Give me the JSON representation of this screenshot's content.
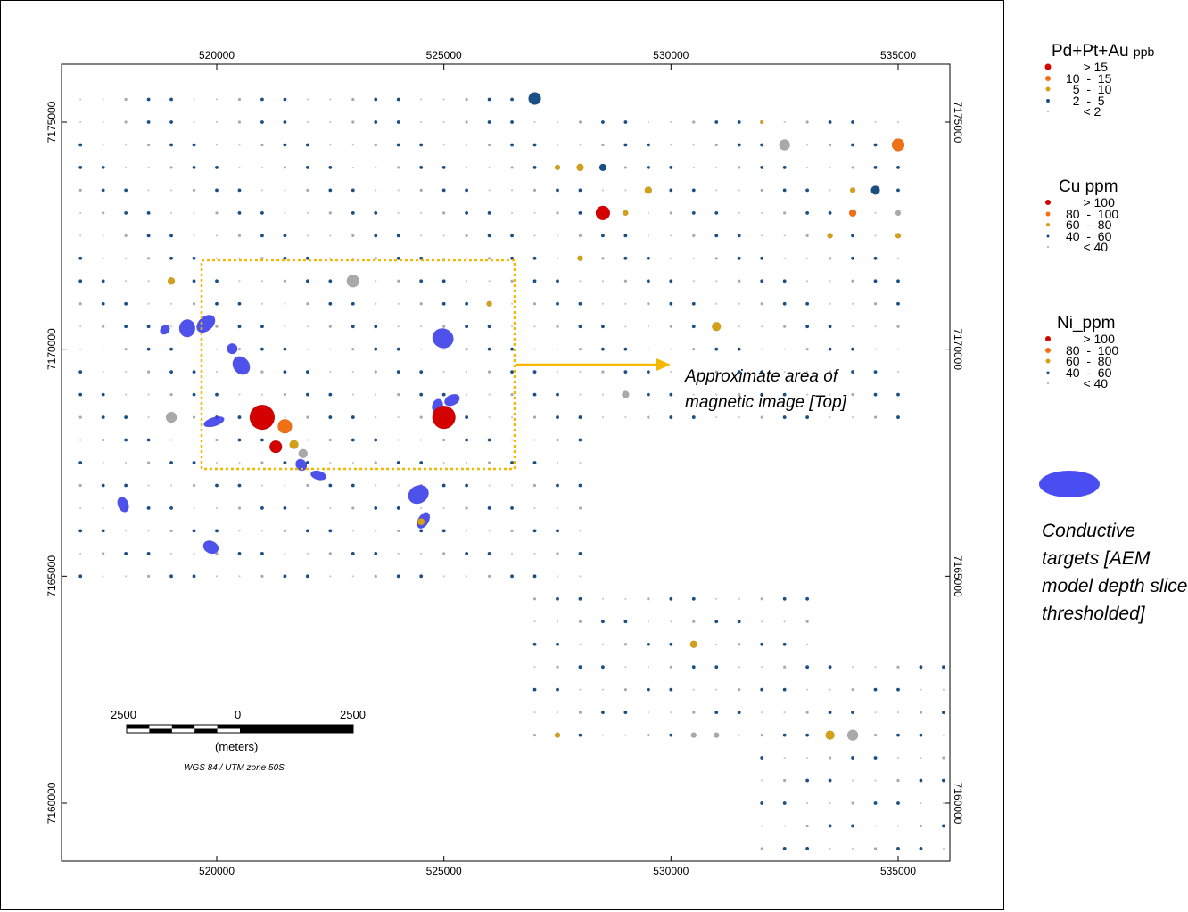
{
  "map": {
    "x_ticks": [
      "520000",
      "525000",
      "530000",
      "535000"
    ],
    "y_ticks": [
      "7175000",
      "7170000",
      "7165000",
      "7160000"
    ],
    "annotation": [
      "Approximate area of",
      "magnetic image [Top]"
    ],
    "colors": {
      "gt_high": "#d40000",
      "high": "#f07015",
      "mid": "#d4a017",
      "low": "#1a4f86",
      "lowest": "#a9a9a9",
      "conductive": "#3b3fe8",
      "box": "#f5b800"
    },
    "conductive_targets": [
      {
        "e": 518860,
        "n": 7170430
      },
      {
        "e": 519350,
        "n": 7170460
      },
      {
        "e": 519760,
        "n": 7170560
      },
      {
        "e": 520340,
        "n": 7170010
      },
      {
        "e": 520540,
        "n": 7169640
      },
      {
        "e": 520980,
        "n": 7168560
      },
      {
        "e": 521860,
        "n": 7167450
      },
      {
        "e": 522240,
        "n": 7167220
      },
      {
        "e": 524440,
        "n": 7166800
      },
      {
        "e": 524860,
        "n": 7168750
      },
      {
        "e": 525180,
        "n": 7168880
      },
      {
        "e": 524980,
        "n": 7170240
      },
      {
        "e": 517940,
        "n": 7166580
      },
      {
        "e": 519870,
        "n": 7165640
      },
      {
        "e": 519940,
        "n": 7168400
      },
      {
        "e": 524550,
        "n": 7166230
      }
    ],
    "samples": [
      {
        "e": 527000,
        "n": 7175520,
        "c": "low",
        "s": 7
      },
      {
        "e": 528500,
        "n": 7174000,
        "c": "low",
        "s": 4
      },
      {
        "e": 532500,
        "n": 7174500,
        "c": "lowest",
        "s": 6
      },
      {
        "e": 535000,
        "n": 7174500,
        "c": "high",
        "s": 7
      },
      {
        "e": 528500,
        "n": 7173000,
        "c": "gt_high",
        "s": 8
      },
      {
        "e": 528000,
        "n": 7174000,
        "c": "mid",
        "s": 4
      },
      {
        "e": 527500,
        "n": 7174000,
        "c": "mid",
        "s": 3
      },
      {
        "e": 529500,
        "n": 7173500,
        "c": "mid",
        "s": 4
      },
      {
        "e": 529000,
        "n": 7173000,
        "c": "mid",
        "s": 3
      },
      {
        "e": 534000,
        "n": 7173000,
        "c": "high",
        "s": 4
      },
      {
        "e": 534500,
        "n": 7173500,
        "c": "low",
        "s": 5
      },
      {
        "e": 534000,
        "n": 7173500,
        "c": "mid",
        "s": 3
      },
      {
        "e": 535000,
        "n": 7173000,
        "c": "lowest",
        "s": 3
      },
      {
        "e": 533500,
        "n": 7172500,
        "c": "mid",
        "s": 3
      },
      {
        "e": 535000,
        "n": 7172500,
        "c": "mid",
        "s": 3
      },
      {
        "e": 519000,
        "n": 7171500,
        "c": "mid",
        "s": 4
      },
      {
        "e": 523000,
        "n": 7171500,
        "c": "lowest",
        "s": 7
      },
      {
        "e": 526000,
        "n": 7171000,
        "c": "mid",
        "s": 3
      },
      {
        "e": 531000,
        "n": 7170500,
        "c": "mid",
        "s": 5
      },
      {
        "e": 519000,
        "n": 7168500,
        "c": "lowest",
        "s": 6
      },
      {
        "e": 521000,
        "n": 7168500,
        "c": "gt_high",
        "s": 14
      },
      {
        "e": 521500,
        "n": 7168300,
        "c": "high",
        "s": 8
      },
      {
        "e": 521300,
        "n": 7167850,
        "c": "gt_high",
        "s": 7
      },
      {
        "e": 521700,
        "n": 7167900,
        "c": "mid",
        "s": 5
      },
      {
        "e": 521900,
        "n": 7167700,
        "c": "lowest",
        "s": 5
      },
      {
        "e": 525000,
        "n": 7168500,
        "c": "gt_high",
        "s": 13
      },
      {
        "e": 529000,
        "n": 7169000,
        "c": "lowest",
        "s": 4
      },
      {
        "e": 528000,
        "n": 7172000,
        "c": "mid",
        "s": 3
      },
      {
        "e": 524500,
        "n": 7166200,
        "c": "mid",
        "s": 4
      },
      {
        "e": 530500,
        "n": 7163500,
        "c": "mid",
        "s": 4
      },
      {
        "e": 533500,
        "n": 7161500,
        "c": "mid",
        "s": 5
      },
      {
        "e": 534000,
        "n": 7161500,
        "c": "lowest",
        "s": 6
      },
      {
        "e": 527500,
        "n": 7161500,
        "c": "mid",
        "s": 3
      },
      {
        "e": 530500,
        "n": 7161500,
        "c": "lowest",
        "s": 3
      },
      {
        "e": 531000,
        "n": 7161500,
        "c": "lowest",
        "s": 3
      },
      {
        "e": 532000,
        "n": 7175000,
        "c": "mid",
        "s": 2
      }
    ]
  },
  "scale_bar": {
    "left_label": "2500",
    "mid_label": "0",
    "right_label": "2500",
    "unit": "(meters)",
    "projection": "WGS 84 / UTM zone 50S"
  },
  "legend": {
    "pge": {
      "title": "Pd+Pt+Au",
      "unit": "ppb",
      "items": [
        {
          "label": "     > 15",
          "color": "#d40000",
          "s": 7
        },
        {
          "label": "10  -  15",
          "color": "#f07015",
          "s": 6
        },
        {
          "label": "  5  -  10",
          "color": "#d4a017",
          "s": 5
        },
        {
          "label": "  2  -  5",
          "color": "#1a4f86",
          "s": 4
        },
        {
          "label": "     < 2",
          "color": "#a9a9a9",
          "s": 2
        }
      ]
    },
    "cu": {
      "title": "Cu ppm",
      "items": [
        {
          "label": "     > 100",
          "color": "#d40000",
          "s": 6
        },
        {
          "label": "80  -  100",
          "color": "#f07015",
          "s": 5
        },
        {
          "label": "60  -  80",
          "color": "#d4a017",
          "s": 4
        },
        {
          "label": "40  -  60",
          "color": "#1a4f86",
          "s": 3
        },
        {
          "label": "     < 40",
          "color": "#a9a9a9",
          "s": 2
        }
      ]
    },
    "ni": {
      "title": "Ni_ppm",
      "items": [
        {
          "label": "     > 100",
          "color": "#d40000",
          "s": 6
        },
        {
          "label": "80  -  100",
          "color": "#f07015",
          "s": 6
        },
        {
          "label": "60  -  80",
          "color": "#d4a017",
          "s": 5
        },
        {
          "label": "40  -  60",
          "color": "#1a4f86",
          "s": 3
        },
        {
          "label": "     < 40",
          "color": "#a9a9a9",
          "s": 2
        }
      ]
    },
    "conductive": {
      "label": "Conductive targets [AEM model depth slice thresholded]",
      "color": "#4a4ef2"
    }
  }
}
